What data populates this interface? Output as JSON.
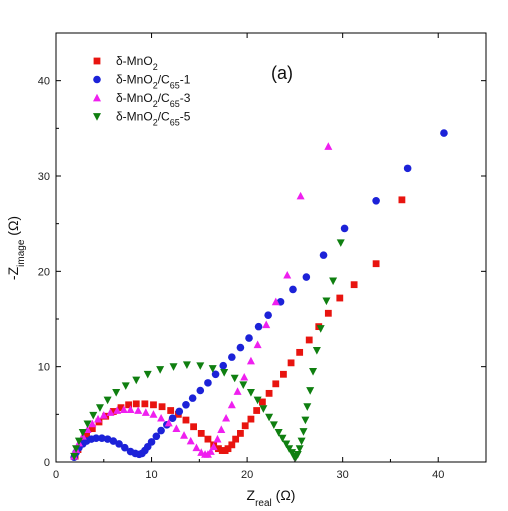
{
  "chart_data": {
    "type": "scatter",
    "title": "",
    "panel_label": "(a)",
    "xlabel": {
      "main": "Z",
      "sub": "real",
      "unit": " (Ω)"
    },
    "ylabel": {
      "main": "-Z",
      "sub": "image",
      "unit": " (Ω)"
    },
    "xlim": [
      0,
      45
    ],
    "ylim": [
      0,
      45
    ],
    "xticks": [
      0,
      10,
      20,
      30,
      40
    ],
    "yticks": [
      0,
      10,
      20,
      30,
      40
    ],
    "grid": false,
    "legend_position": "top-left",
    "series": [
      {
        "name": "δ-MnO2",
        "legend": [
          {
            "t": "δ-MnO"
          },
          {
            "t": "2",
            "sub": true
          }
        ],
        "marker": "square",
        "color": "#e8140f",
        "x": [
          2.0,
          2.3,
          2.7,
          3.2,
          3.8,
          4.5,
          5.2,
          6.0,
          6.8,
          7.6,
          8.4,
          9.3,
          10.2,
          11.1,
          12.0,
          12.8,
          13.6,
          14.4,
          15.2,
          15.9,
          16.5,
          17.0,
          17.4,
          17.7,
          18.0,
          18.4,
          18.8,
          19.3,
          19.8,
          20.4,
          21.0,
          21.6,
          22.3,
          23.0,
          23.8,
          24.6,
          25.5,
          26.5,
          27.5,
          28.5,
          29.7,
          31.2,
          33.5,
          36.2
        ],
        "y": [
          0.6,
          1.3,
          2.0,
          2.8,
          3.5,
          4.2,
          4.8,
          5.3,
          5.7,
          6.0,
          6.1,
          6.1,
          6.0,
          5.8,
          5.4,
          5.0,
          4.4,
          3.7,
          3.0,
          2.4,
          1.8,
          1.4,
          1.2,
          1.2,
          1.4,
          1.8,
          2.4,
          3.0,
          3.8,
          4.5,
          5.4,
          6.3,
          7.2,
          8.2,
          9.2,
          10.4,
          11.5,
          12.8,
          14.2,
          15.6,
          17.2,
          18.6,
          20.8,
          27.5
        ]
      },
      {
        "name": "δ-MnO2/C65-1",
        "legend": [
          {
            "t": "δ-MnO"
          },
          {
            "t": "2",
            "sub": true
          },
          {
            "t": "/C"
          },
          {
            "t": "65",
            "sub": true
          },
          {
            "t": "-1"
          }
        ],
        "marker": "circle",
        "color": "#1c22d8",
        "x": [
          1.9,
          2.1,
          2.4,
          2.8,
          3.2,
          3.7,
          4.2,
          4.8,
          5.4,
          6.0,
          6.6,
          7.2,
          7.8,
          8.3,
          8.7,
          9.0,
          9.3,
          9.6,
          10.0,
          10.5,
          11.0,
          11.6,
          12.2,
          12.9,
          13.6,
          14.3,
          15.1,
          15.9,
          16.7,
          17.5,
          18.4,
          19.3,
          20.2,
          21.2,
          22.2,
          23.5,
          24.8,
          26.2,
          28.0,
          30.2,
          33.5,
          36.8,
          40.6
        ],
        "y": [
          0.5,
          1.0,
          1.5,
          1.9,
          2.2,
          2.4,
          2.5,
          2.5,
          2.4,
          2.2,
          1.9,
          1.5,
          1.1,
          0.9,
          0.8,
          0.9,
          1.2,
          1.6,
          2.1,
          2.7,
          3.3,
          3.9,
          4.6,
          5.3,
          6.0,
          6.7,
          7.5,
          8.3,
          9.2,
          10.1,
          11.0,
          12.0,
          13.0,
          14.2,
          15.4,
          16.8,
          18.1,
          19.4,
          21.7,
          24.5,
          27.4,
          30.8,
          34.5
        ]
      },
      {
        "name": "δ-MnO2/C65-3",
        "legend": [
          {
            "t": "δ-MnO"
          },
          {
            "t": "2",
            "sub": true
          },
          {
            "t": "/C"
          },
          {
            "t": "65",
            "sub": true
          },
          {
            "t": "-3"
          }
        ],
        "marker": "triangle-up",
        "color": "#ef1fef",
        "x": [
          1.9,
          2.1,
          2.4,
          2.8,
          3.3,
          3.8,
          4.4,
          5.0,
          5.7,
          6.4,
          7.1,
          7.8,
          8.6,
          9.4,
          10.2,
          11.0,
          11.8,
          12.6,
          13.4,
          14.1,
          14.7,
          15.2,
          15.6,
          15.9,
          16.2,
          16.5,
          16.9,
          17.3,
          17.8,
          18.4,
          19.0,
          19.7,
          20.4,
          21.1,
          22.0,
          23.0,
          24.2,
          25.6,
          28.5
        ],
        "y": [
          0.6,
          1.3,
          2.0,
          2.7,
          3.4,
          4.0,
          4.5,
          4.9,
          5.2,
          5.4,
          5.5,
          5.5,
          5.4,
          5.2,
          5.0,
          4.6,
          4.1,
          3.5,
          2.8,
          2.2,
          1.5,
          1.0,
          0.8,
          0.8,
          1.1,
          1.6,
          2.4,
          3.4,
          4.6,
          6.0,
          7.4,
          8.9,
          10.6,
          12.3,
          14.4,
          16.8,
          19.6,
          27.9,
          33.1
        ]
      },
      {
        "name": "δ-MnO2/C65-5",
        "legend": [
          {
            "t": "δ-MnO"
          },
          {
            "t": "2",
            "sub": true
          },
          {
            "t": "/C"
          },
          {
            "t": "65",
            "sub": true
          },
          {
            "t": "-5"
          }
        ],
        "marker": "triangle-down",
        "color": "#0f7f10",
        "x": [
          1.9,
          2.1,
          2.4,
          2.8,
          3.3,
          3.9,
          4.6,
          5.4,
          6.3,
          7.3,
          8.4,
          9.6,
          10.9,
          12.3,
          13.7,
          15.1,
          16.4,
          17.6,
          18.7,
          19.6,
          20.4,
          21.1,
          21.7,
          22.3,
          22.8,
          23.3,
          23.7,
          24.1,
          24.4,
          24.7,
          24.9,
          25.1,
          25.3,
          25.5,
          25.7,
          25.9,
          26.1,
          26.3,
          26.6,
          26.9,
          27.3,
          27.7,
          28.3,
          29.0,
          29.8
        ],
        "y": [
          0.6,
          1.4,
          2.2,
          3.1,
          4.0,
          4.9,
          5.7,
          6.5,
          7.3,
          8.0,
          8.6,
          9.2,
          9.7,
          10.0,
          10.2,
          10.1,
          9.8,
          9.4,
          8.8,
          8.1,
          7.3,
          6.5,
          5.6,
          4.7,
          3.9,
          3.1,
          2.5,
          1.9,
          1.4,
          1.0,
          0.6,
          0.5,
          0.8,
          1.4,
          2.2,
          3.2,
          4.4,
          5.8,
          7.5,
          9.5,
          11.7,
          14.0,
          16.9,
          19.0,
          23.0
        ]
      }
    ]
  }
}
